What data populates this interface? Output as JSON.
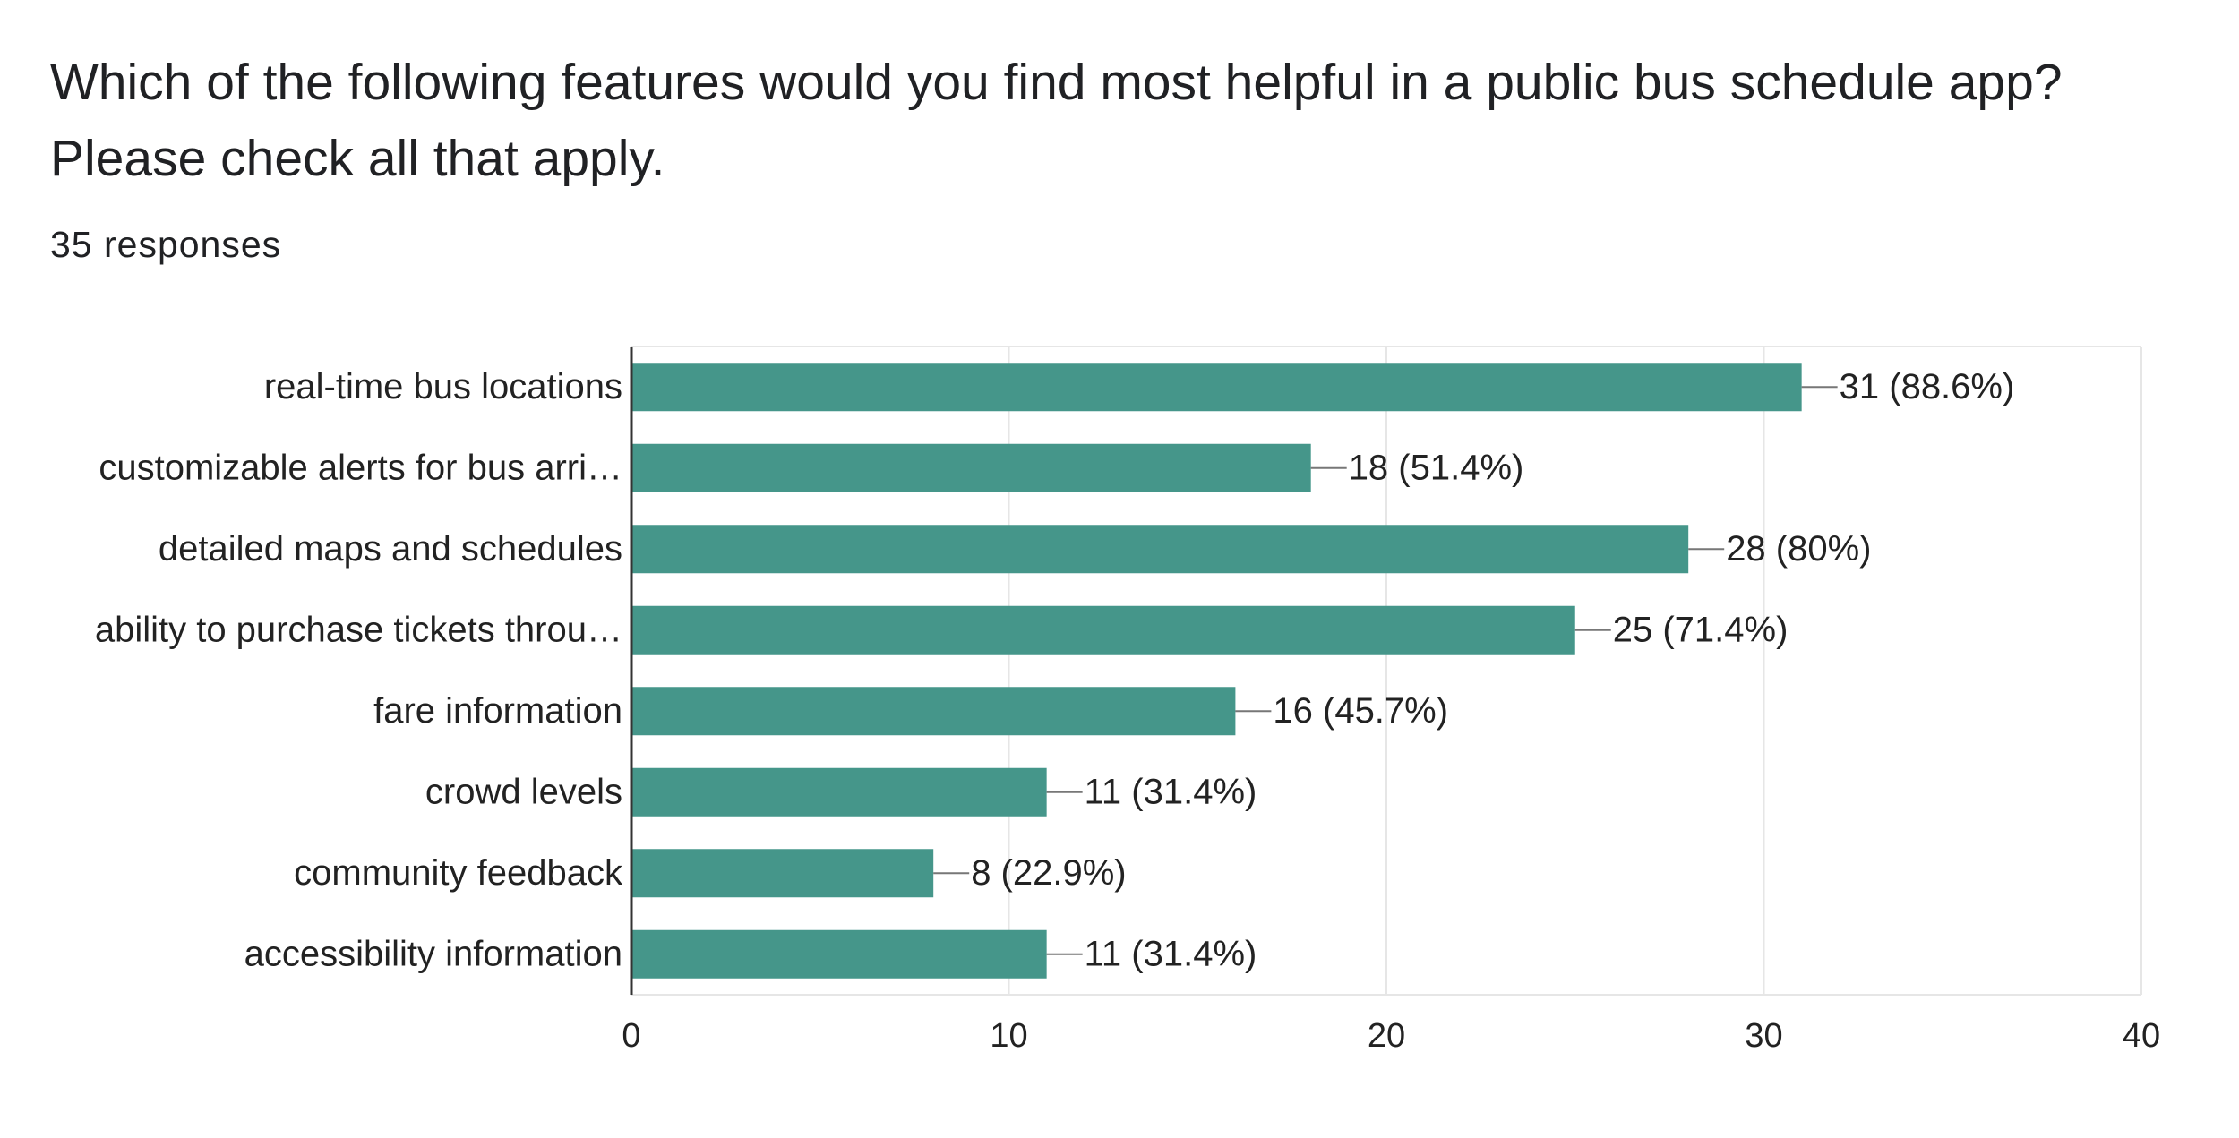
{
  "chart_data": {
    "type": "hbar",
    "title": "Which of the following features would you find most helpful in a public bus schedule app? Please check all that apply.",
    "subtitle": "35 responses",
    "categories": [
      "real-time bus locations",
      "customizable alerts for bus arri…",
      "detailed maps and schedules",
      "ability to purchase tickets throu…",
      "fare information",
      "crowd levels",
      "community feedback",
      "accessibility information"
    ],
    "values": [
      31,
      18,
      28,
      25,
      16,
      11,
      8,
      11
    ],
    "value_labels": [
      "31 (88.6%)",
      "18 (51.4%)",
      "28 (80%)",
      "25 (71.4%)",
      "16 (45.7%)",
      "11 (31.4%)",
      "8 (22.9%)",
      "11 (31.4%)"
    ],
    "color": "#45968a",
    "xlim": [
      0,
      40
    ],
    "xticks": [
      0,
      10,
      20,
      30,
      40
    ],
    "grid": true
  }
}
